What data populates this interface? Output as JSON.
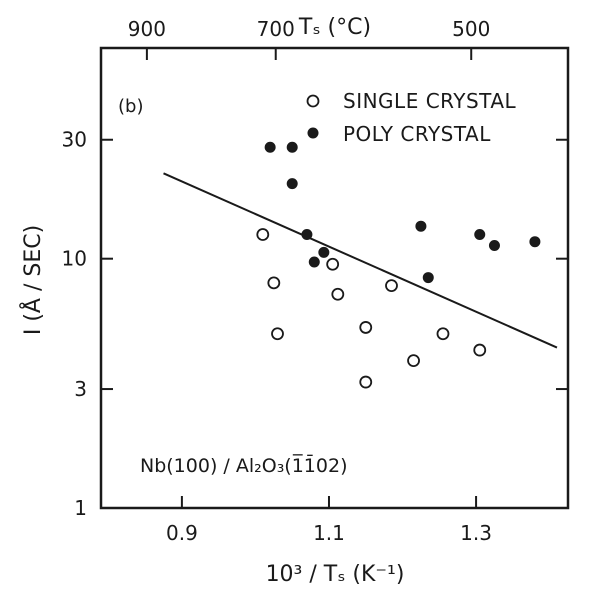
{
  "chart_data": {
    "type": "scatter",
    "panel_label": "(b)",
    "xlabel": "10³ / Tₛ (K⁻¹)",
    "ylabel": "I (Å / SEC)",
    "top_axis_label": "Tₛ (°C)",
    "xlim": [
      0.79,
      1.425
    ],
    "ylim": [
      1,
      70
    ],
    "yscale": "log",
    "x_ticks": [
      {
        "value": 0.9,
        "label": "0.9"
      },
      {
        "value": 1.1,
        "label": "1.1"
      },
      {
        "value": 1.3,
        "label": "1.3"
      }
    ],
    "y_ticks": [
      {
        "value": 1,
        "label": "1"
      },
      {
        "value": 3,
        "label": "3"
      },
      {
        "value": 10,
        "label": "10"
      },
      {
        "value": 30,
        "label": "30"
      }
    ],
    "top_ticks": [
      {
        "celsius": 900,
        "label": "900"
      },
      {
        "celsius": 700,
        "label": "700"
      },
      {
        "celsius": 500,
        "label": "500"
      }
    ],
    "annotation": "Nb(100) / Al₂O₃(1̅1̄02)",
    "series": [
      {
        "name": "SINGLE CRYSTAL",
        "marker": "open-circle",
        "points": [
          {
            "x": 1.01,
            "y": 12.5
          },
          {
            "x": 1.025,
            "y": 8.0
          },
          {
            "x": 1.03,
            "y": 5.0
          },
          {
            "x": 1.105,
            "y": 9.5
          },
          {
            "x": 1.112,
            "y": 7.2
          },
          {
            "x": 1.15,
            "y": 5.3
          },
          {
            "x": 1.15,
            "y": 3.2
          },
          {
            "x": 1.185,
            "y": 7.8
          },
          {
            "x": 1.215,
            "y": 3.9
          },
          {
            "x": 1.255,
            "y": 5.0
          },
          {
            "x": 1.305,
            "y": 4.3
          }
        ]
      },
      {
        "name": "POLY CRYSTAL",
        "marker": "filled-circle",
        "points": [
          {
            "x": 1.02,
            "y": 28
          },
          {
            "x": 1.05,
            "y": 28
          },
          {
            "x": 1.05,
            "y": 20
          },
          {
            "x": 1.07,
            "y": 12.5
          },
          {
            "x": 1.08,
            "y": 9.7
          },
          {
            "x": 1.093,
            "y": 10.6
          },
          {
            "x": 1.225,
            "y": 13.5
          },
          {
            "x": 1.235,
            "y": 8.4
          },
          {
            "x": 1.305,
            "y": 12.5
          },
          {
            "x": 1.325,
            "y": 11.3
          },
          {
            "x": 1.38,
            "y": 11.7
          }
        ]
      }
    ],
    "fit_line": {
      "x": [
        0.875,
        1.41
      ],
      "y": [
        22,
        4.4
      ]
    }
  }
}
